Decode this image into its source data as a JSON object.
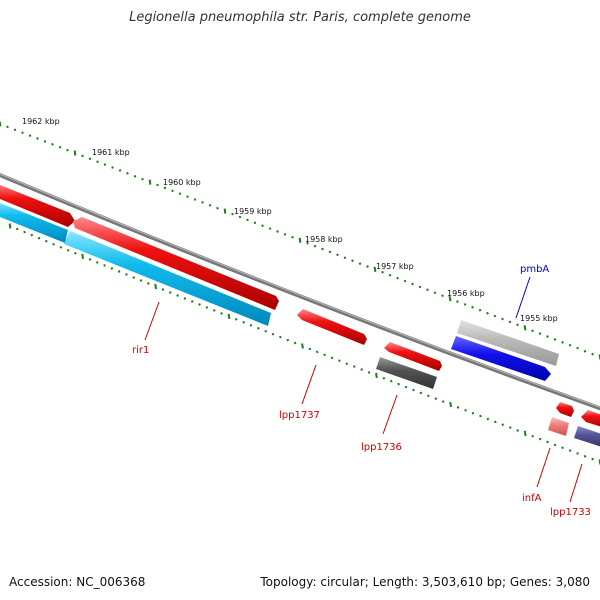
{
  "title": "Legionella pneumophila str. Paris, complete genome",
  "footer": {
    "accession": "Accession: NC_006368",
    "topology": "Topology: circular; Length: 3,503,610 bp; Genes: 3,080"
  },
  "kbp_labels": [
    "1962 kbp",
    "1961 kbp",
    "1960 kbp",
    "1959 kbp",
    "1958 kbp",
    "1957 kbp",
    "1956 kbp",
    "1955 kbp"
  ],
  "genes": [
    {
      "name": "rir1",
      "color": "#cc0000"
    },
    {
      "name": "lpp1737",
      "color": "#cc0000"
    },
    {
      "name": "lpp1736",
      "color": "#cc0000"
    },
    {
      "name": "pmbA",
      "color": "#0000cc"
    },
    {
      "name": "infA",
      "color": "#cc0000"
    },
    {
      "name": "lpp1733",
      "color": "#cc0000"
    }
  ],
  "colors": {
    "backbone": "#777777",
    "tick": "#1a7f1a",
    "gene_red": "#ee1111",
    "gene_cyan": "#11bbee",
    "gene_blue": "#1111ee",
    "gene_gray_light": "#bbbbbb",
    "gene_gray_dark": "#555555",
    "gene_pink": "#f08080",
    "gene_purple": "#555599"
  }
}
